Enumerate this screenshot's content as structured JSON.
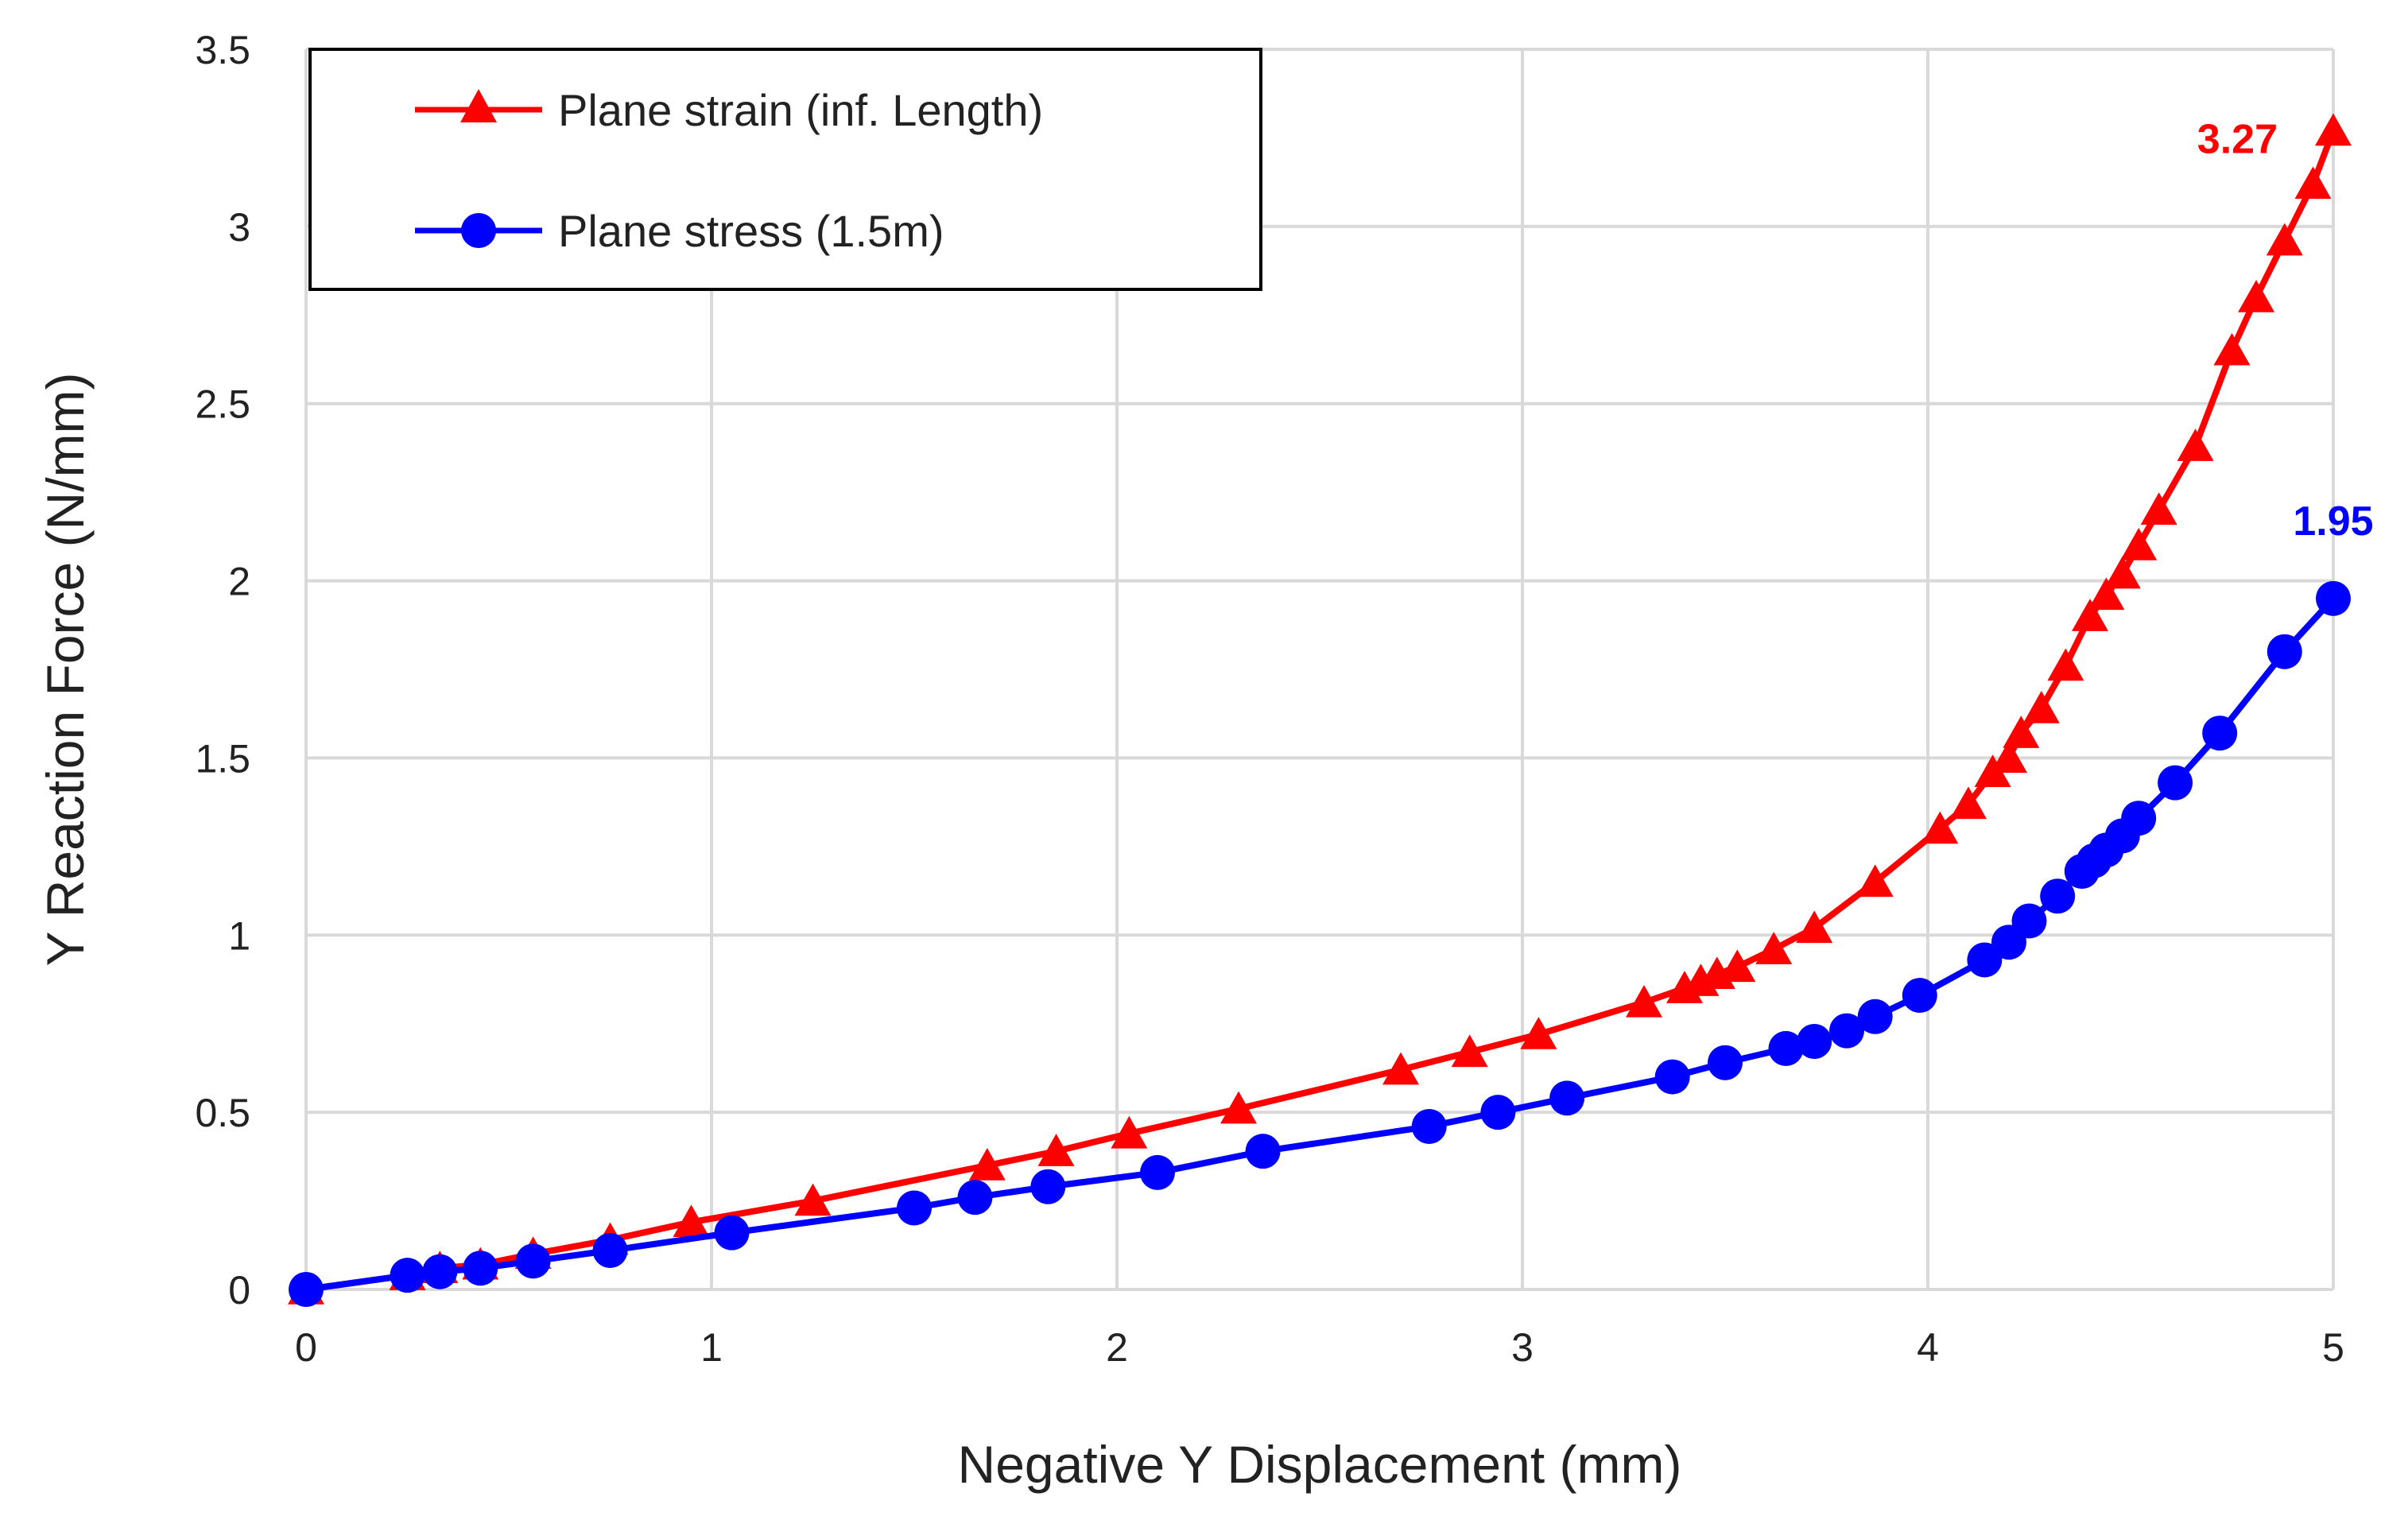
{
  "chart_data": {
    "type": "line",
    "title": "",
    "xlabel": "Negative Y Displacement (mm)",
    "ylabel": "Y Reaction Force  (N/mm)",
    "xlim": [
      0,
      5
    ],
    "ylim": [
      0,
      3.5
    ],
    "xticks": [
      0,
      1,
      2,
      3,
      4,
      5
    ],
    "xtick_labels": [
      "0",
      "1",
      "2",
      "3",
      "4",
      "5"
    ],
    "yticks": [
      0,
      0.5,
      1,
      1.5,
      2,
      2.5,
      3,
      3.5
    ],
    "ytick_labels": [
      "0",
      "0.5",
      "1",
      "1.5",
      "2",
      "2.5",
      "3",
      "3.5"
    ],
    "grid": true,
    "legend_position": "top-left",
    "series": [
      {
        "name": "Plane strain (inf. Length)",
        "color": "#ff0000",
        "marker": "triangle",
        "x": [
          0,
          0.25,
          0.33,
          0.43,
          0.56,
          0.75,
          0.95,
          1.25,
          1.68,
          1.85,
          2.03,
          2.3,
          2.7,
          2.87,
          3.04,
          3.3,
          3.4,
          3.44,
          3.48,
          3.53,
          3.62,
          3.72,
          3.87,
          4.03,
          4.1,
          4.16,
          4.2,
          4.23,
          4.28,
          4.34,
          4.4,
          4.44,
          4.48,
          4.52,
          4.57,
          4.66,
          4.75,
          4.81,
          4.88,
          4.95,
          5.0
        ],
        "y": [
          0,
          0.04,
          0.06,
          0.07,
          0.1,
          0.14,
          0.19,
          0.25,
          0.35,
          0.39,
          0.44,
          0.51,
          0.62,
          0.67,
          0.72,
          0.81,
          0.85,
          0.87,
          0.89,
          0.91,
          0.96,
          1.02,
          1.15,
          1.3,
          1.37,
          1.46,
          1.5,
          1.57,
          1.64,
          1.76,
          1.9,
          1.96,
          2.02,
          2.1,
          2.2,
          2.38,
          2.65,
          2.8,
          2.96,
          3.12,
          3.27
        ]
      },
      {
        "name": "Plane stress (1.5m)",
        "color": "#0000ff",
        "marker": "circle",
        "x": [
          0,
          0.25,
          0.33,
          0.43,
          0.56,
          0.75,
          1.05,
          1.5,
          1.65,
          1.83,
          2.1,
          2.36,
          2.77,
          2.94,
          3.11,
          3.37,
          3.5,
          3.65,
          3.72,
          3.8,
          3.87,
          3.98,
          4.14,
          4.2,
          4.25,
          4.32,
          4.38,
          4.41,
          4.44,
          4.48,
          4.52,
          4.61,
          4.72,
          4.88,
          5.0
        ],
        "y": [
          0,
          0.04,
          0.05,
          0.06,
          0.08,
          0.11,
          0.16,
          0.23,
          0.26,
          0.29,
          0.33,
          0.39,
          0.46,
          0.5,
          0.54,
          0.6,
          0.64,
          0.68,
          0.7,
          0.73,
          0.77,
          0.83,
          0.93,
          0.98,
          1.04,
          1.11,
          1.18,
          1.21,
          1.24,
          1.28,
          1.33,
          1.43,
          1.57,
          1.8,
          1.95
        ]
      }
    ],
    "annotations": [
      {
        "text": "3.27",
        "series": 0,
        "color": "#ff0000"
      },
      {
        "text": "1.95",
        "series": 1,
        "color": "#0000ff"
      }
    ]
  }
}
